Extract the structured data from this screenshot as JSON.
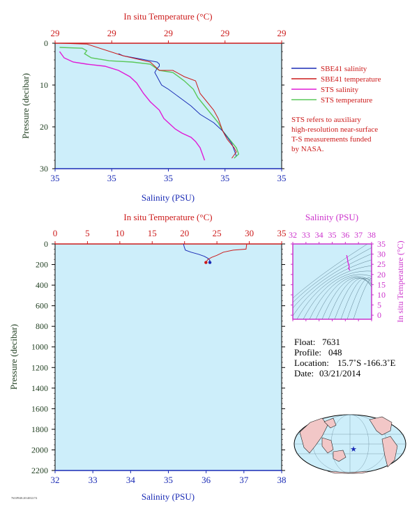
{
  "colors": {
    "panel_bg": "#cdeefa",
    "salinity_axis": "#1a2bb5",
    "temperature_axis": "#cc1a1a",
    "pressure_axis": "#1f3d1f",
    "sts_salinity": "#e01ad6",
    "sts_temperature": "#5ac85a",
    "ts_axis": "#cc33cc",
    "land": "#f2c7c7"
  },
  "chart_data": [
    {
      "type": "line",
      "xlabel": "Salinity (PSU)",
      "x2label": "In situ Temperature (°C)",
      "ylabel": "Pressure (decibar)",
      "x_ticklabels": [
        "35",
        "35",
        "35",
        "35",
        "35"
      ],
      "x2_ticklabels": [
        "29",
        "29",
        "29",
        "29",
        "29"
      ],
      "y_ticks": [
        0,
        10,
        20,
        30
      ],
      "ylim": [
        30,
        0
      ],
      "series": [
        {
          "name": "SBE41 salinity",
          "color": "#1a2bb5",
          "x": [
            0.28,
            0.3,
            0.4,
            0.45,
            0.46,
            0.46,
            0.45,
            0.44,
            0.45,
            0.46,
            0.47,
            0.5,
            0.55,
            0.6,
            0.64,
            0.7,
            0.74,
            0.78,
            0.8
          ],
          "y": [
            2.5,
            3,
            4,
            4.5,
            5,
            5.5,
            6,
            7,
            8,
            9,
            10,
            11,
            13,
            15,
            17,
            19,
            21,
            24,
            27
          ]
        },
        {
          "name": "SBE41 temperature",
          "color": "#cc1a1a",
          "x": [
            0.02,
            0.14,
            0.3,
            0.42,
            0.46,
            0.52,
            0.57,
            0.62,
            0.64,
            0.67,
            0.7,
            0.72,
            0.74,
            0.76,
            0.79,
            0.8,
            0.78
          ],
          "y": [
            0,
            0.2,
            3,
            4.5,
            6.5,
            6.5,
            8,
            9,
            12,
            14,
            16,
            18,
            21,
            23,
            25,
            26,
            27.5
          ]
        },
        {
          "name": "STS salinity",
          "color": "#e01ad6",
          "x": [
            0.02,
            0.04,
            0.08,
            0.14,
            0.22,
            0.28,
            0.33,
            0.36,
            0.39,
            0.42,
            0.46,
            0.48,
            0.5,
            0.53,
            0.56,
            0.6,
            0.62,
            0.64,
            0.65,
            0.66
          ],
          "y": [
            2,
            3.5,
            4.5,
            5,
            5.5,
            6.5,
            8,
            9.5,
            12,
            14,
            16,
            18,
            19,
            20.5,
            21.5,
            22.5,
            23.5,
            25,
            26.5,
            28
          ]
        },
        {
          "name": "STS temperature",
          "color": "#5ac85a",
          "x": [
            0.02,
            0.12,
            0.14,
            0.13,
            0.16,
            0.24,
            0.34,
            0.42,
            0.46,
            0.52,
            0.57,
            0.61,
            0.63,
            0.66,
            0.69,
            0.72,
            0.74,
            0.77,
            0.8,
            0.81,
            0.79
          ],
          "y": [
            1,
            1.2,
            1.8,
            2.5,
            3.5,
            4.2,
            4.5,
            5,
            6.5,
            7,
            9,
            11,
            13,
            15,
            17,
            19,
            21,
            23,
            25,
            26.5,
            27.5
          ]
        }
      ],
      "legend_position": "right"
    },
    {
      "type": "line",
      "xlabel": "Salinity (PSU)",
      "x2label": "In situ Temperature (°C)",
      "ylabel": "Pressure (decibar)",
      "x_ticks": [
        32,
        33,
        34,
        35,
        36,
        37,
        38
      ],
      "x2_ticks": [
        0,
        5,
        10,
        15,
        20,
        25,
        30,
        35
      ],
      "y_ticks": [
        0,
        200,
        400,
        600,
        800,
        1000,
        1200,
        1400,
        1600,
        1800,
        2000,
        2200
      ],
      "xlim": [
        32,
        38
      ],
      "x2lim": [
        0,
        35
      ],
      "ylim": [
        2200,
        0
      ],
      "series": [
        {
          "name": "salinity",
          "color": "#1a2bb5",
          "x": [
            35.4,
            35.42,
            35.45,
            35.6,
            35.7,
            35.8,
            35.95,
            36.05,
            36.1,
            36.08,
            36.1
          ],
          "y": [
            0,
            30,
            60,
            80,
            90,
            100,
            120,
            140,
            160,
            170,
            180
          ]
        },
        {
          "name": "temperature",
          "color": "#cc1a1a",
          "x": [
            29.6,
            29.5,
            27.5,
            26.0,
            25.0,
            24.2,
            23.6,
            23.3
          ],
          "y": [
            0,
            50,
            60,
            80,
            110,
            130,
            150,
            180
          ]
        }
      ]
    },
    {
      "type": "scatter",
      "xlabel": "Salinity (PSU)",
      "ylabel": "In situ Temperature (°C)",
      "x_ticks": [
        32,
        33,
        34,
        35,
        36,
        37,
        38
      ],
      "y_ticks": [
        0,
        5,
        10,
        15,
        20,
        25,
        30,
        35
      ],
      "xlim": [
        32,
        38
      ],
      "ylim": [
        -2,
        35
      ],
      "series": [
        {
          "name": "T-S",
          "color": "#e01ad6",
          "x": [
            36.1,
            36.15,
            36.2,
            36.3,
            36.25,
            36.35
          ],
          "y": [
            29.5,
            28,
            26,
            24,
            23,
            22
          ]
        }
      ]
    }
  ],
  "note": {
    "text": "STS refers to auxiliary high-resolution near-surface T-S measurements funded by NASA.",
    "lines": [
      "STS refers to auxiliary",
      "high-resolution near-surface",
      "T-S measurements funded",
      "by NASA."
    ]
  },
  "info": {
    "float_label": "Float:",
    "float_value": "7631",
    "profile_label": "Profile:",
    "profile_value": "048",
    "location_label": "Location:",
    "location_value": "15.7˚S  -166.3˚E",
    "date_label": "Date:",
    "date_value": "03/21/2014"
  },
  "footer_code": "7631P048.2014032174"
}
